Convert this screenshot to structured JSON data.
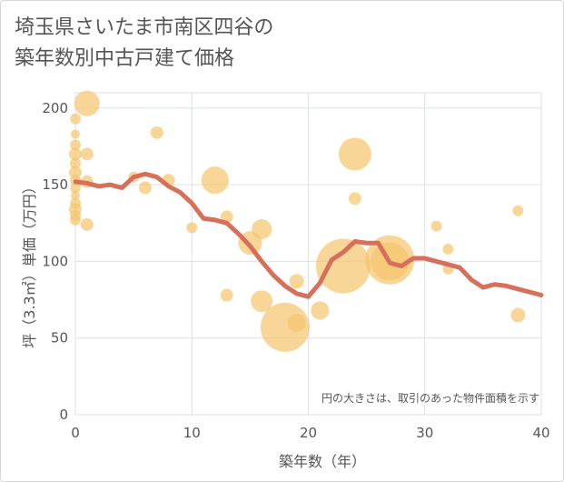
{
  "title_line1": "埼玉県さいたま市南区四谷の",
  "title_line2": "築年数別中古戸建て価格",
  "chart_data": {
    "type": "scatter",
    "title": "埼玉県さいたま市南区四谷の築年数別中古戸建て価格",
    "xlabel": "築年数（年）",
    "ylabel": "坪（3.3㎡）単価（万円）",
    "xlim": [
      0,
      40
    ],
    "ylim": [
      0,
      210
    ],
    "xticks": [
      0,
      10,
      20,
      30,
      40
    ],
    "yticks": [
      0,
      50,
      100,
      150,
      200
    ],
    "grid": true,
    "note": "円の大きさは、取引のあった物件面積を示す",
    "colors": {
      "bubble": "#f5c46c",
      "line": "#d6705a",
      "grid": "#d8e1ec"
    },
    "points": [
      {
        "x": 0,
        "y": 193,
        "r": 6
      },
      {
        "x": 0,
        "y": 183,
        "r": 5
      },
      {
        "x": 0,
        "y": 176,
        "r": 6
      },
      {
        "x": 0,
        "y": 170,
        "r": 7
      },
      {
        "x": 0,
        "y": 164,
        "r": 6
      },
      {
        "x": 0,
        "y": 158,
        "r": 7
      },
      {
        "x": 0,
        "y": 153,
        "r": 6
      },
      {
        "x": 0,
        "y": 148,
        "r": 6
      },
      {
        "x": 0,
        "y": 143,
        "r": 5
      },
      {
        "x": 0,
        "y": 138,
        "r": 6
      },
      {
        "x": 0,
        "y": 134,
        "r": 7
      },
      {
        "x": 0,
        "y": 130,
        "r": 6
      },
      {
        "x": 0,
        "y": 127,
        "r": 6
      },
      {
        "x": 1,
        "y": 203,
        "r": 14
      },
      {
        "x": 1,
        "y": 170,
        "r": 7
      },
      {
        "x": 1,
        "y": 152,
        "r": 7
      },
      {
        "x": 1,
        "y": 124,
        "r": 7
      },
      {
        "x": 5,
        "y": 155,
        "r": 6
      },
      {
        "x": 6,
        "y": 148,
        "r": 7
      },
      {
        "x": 7,
        "y": 184,
        "r": 7
      },
      {
        "x": 8,
        "y": 153,
        "r": 7
      },
      {
        "x": 10,
        "y": 122,
        "r": 6
      },
      {
        "x": 12,
        "y": 153,
        "r": 15
      },
      {
        "x": 13,
        "y": 129,
        "r": 7
      },
      {
        "x": 13,
        "y": 78,
        "r": 7
      },
      {
        "x": 15,
        "y": 112,
        "r": 13
      },
      {
        "x": 16,
        "y": 121,
        "r": 11
      },
      {
        "x": 16,
        "y": 74,
        "r": 12
      },
      {
        "x": 18,
        "y": 57,
        "r": 27
      },
      {
        "x": 19,
        "y": 87,
        "r": 8
      },
      {
        "x": 19,
        "y": 60,
        "r": 10
      },
      {
        "x": 21,
        "y": 68,
        "r": 10
      },
      {
        "x": 23,
        "y": 97,
        "r": 30
      },
      {
        "x": 24,
        "y": 170,
        "r": 18
      },
      {
        "x": 24,
        "y": 141,
        "r": 7
      },
      {
        "x": 27,
        "y": 101,
        "r": 27
      },
      {
        "x": 27,
        "y": 100,
        "r": 21
      },
      {
        "x": 31,
        "y": 123,
        "r": 6
      },
      {
        "x": 32,
        "y": 108,
        "r": 6
      },
      {
        "x": 32,
        "y": 95,
        "r": 6
      },
      {
        "x": 38,
        "y": 133,
        "r": 6
      },
      {
        "x": 38,
        "y": 65,
        "r": 8
      }
    ],
    "trend": {
      "x": [
        0,
        1,
        2,
        3,
        4,
        5,
        6,
        7,
        8,
        9,
        10,
        11,
        12,
        13,
        14,
        15,
        16,
        17,
        18,
        19,
        20,
        21,
        22,
        23,
        24,
        25,
        26,
        27,
        28,
        29,
        30,
        31,
        32,
        33,
        34,
        35,
        36,
        37,
        38,
        39,
        40
      ],
      "y": [
        152,
        151,
        149,
        150,
        148,
        155,
        157,
        155,
        149,
        145,
        138,
        128,
        127,
        125,
        118,
        110,
        100,
        91,
        84,
        79,
        77,
        86,
        101,
        106,
        113,
        112,
        112,
        99,
        97,
        102,
        102,
        100,
        98,
        96,
        88,
        83,
        85,
        84,
        82,
        80,
        78
      ]
    }
  }
}
